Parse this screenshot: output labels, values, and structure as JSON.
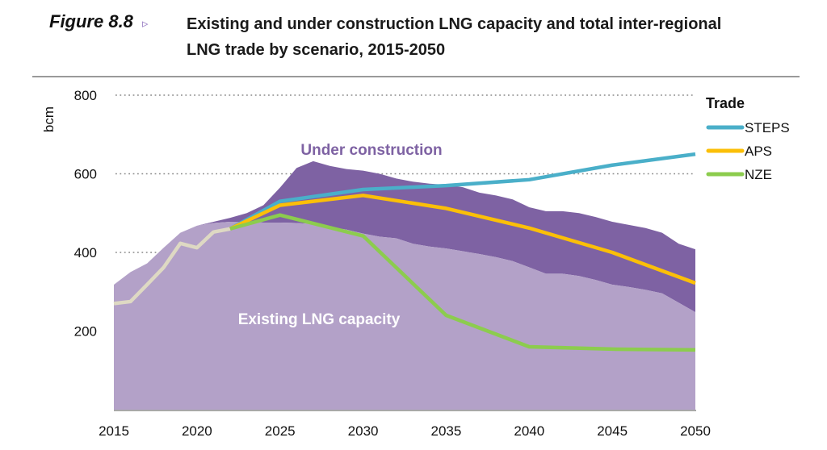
{
  "figure": {
    "label": "Figure 8.8",
    "arrow": "▹",
    "title": "Existing and under construction LNG capacity and total inter-regional LNG trade by scenario, 2015-2050"
  },
  "chart_data": {
    "type": "area",
    "title": "Existing and under construction LNG capacity and total inter-regional LNG trade by scenario, 2015-2050",
    "xlabel": "",
    "ylabel": "bcm",
    "xlim": [
      2015,
      2050
    ],
    "ylim": [
      0,
      800
    ],
    "x_ticks": [
      "2015",
      "2020",
      "2025",
      "2030",
      "2035",
      "2040",
      "2045",
      "2050"
    ],
    "y_ticks": [
      "200",
      "400",
      "600",
      "800"
    ],
    "grid": "horizontal dotted",
    "areas": [
      {
        "name": "Existing LNG capacity",
        "color": "#b3a1c8",
        "label_color": "#ffffff",
        "x": [
          2015,
          2016,
          2017,
          2018,
          2019,
          2020,
          2021,
          2022,
          2023,
          2024,
          2025,
          2026,
          2027,
          2028,
          2029,
          2030,
          2031,
          2032,
          2033,
          2034,
          2035,
          2036,
          2037,
          2038,
          2039,
          2040,
          2041,
          2042,
          2043,
          2044,
          2045,
          2046,
          2047,
          2048,
          2049,
          2050
        ],
        "values": [
          318,
          350,
          372,
          412,
          450,
          468,
          475,
          478,
          478,
          476,
          476,
          475,
          472,
          465,
          458,
          448,
          440,
          436,
          422,
          415,
          410,
          403,
          396,
          388,
          378,
          362,
          346,
          346,
          340,
          330,
          318,
          312,
          305,
          296,
          272,
          248
        ]
      },
      {
        "name": "Under construction",
        "color": "#7e62a3",
        "label_color": "#7e62a3",
        "x": [
          2015,
          2016,
          2017,
          2018,
          2019,
          2020,
          2021,
          2022,
          2023,
          2024,
          2025,
          2026,
          2027,
          2028,
          2029,
          2030,
          2031,
          2032,
          2033,
          2034,
          2035,
          2036,
          2037,
          2038,
          2039,
          2040,
          2041,
          2042,
          2043,
          2044,
          2045,
          2046,
          2047,
          2048,
          2049,
          2050
        ],
        "total_values": [
          318,
          350,
          372,
          412,
          450,
          468,
          478,
          488,
          500,
          520,
          565,
          615,
          632,
          620,
          612,
          608,
          600,
          588,
          580,
          575,
          572,
          566,
          552,
          545,
          535,
          515,
          505,
          505,
          500,
          490,
          478,
          470,
          462,
          450,
          422,
          408
        ]
      }
    ],
    "series": [
      {
        "name": "Historical trade",
        "color": "#ded9c3",
        "in_legend": false,
        "x": [
          2015,
          2016,
          2017,
          2018,
          2019,
          2020,
          2021,
          2022
        ],
        "values": [
          270,
          275,
          318,
          362,
          423,
          412,
          452,
          460
        ]
      },
      {
        "name": "STEPS",
        "color": "#4aafc9",
        "in_legend": true,
        "x": [
          2022,
          2025,
          2030,
          2035,
          2040,
          2045,
          2050
        ],
        "values": [
          460,
          530,
          560,
          570,
          585,
          622,
          650
        ]
      },
      {
        "name": "APS",
        "color": "#fbbf08",
        "in_legend": true,
        "x": [
          2022,
          2025,
          2030,
          2035,
          2040,
          2045,
          2050
        ],
        "values": [
          460,
          520,
          545,
          512,
          462,
          400,
          322
        ]
      },
      {
        "name": "NZE",
        "color": "#8ccc4e",
        "in_legend": true,
        "x": [
          2022,
          2025,
          2030,
          2035,
          2040,
          2045,
          2050
        ],
        "values": [
          460,
          495,
          442,
          240,
          160,
          154,
          152
        ]
      }
    ],
    "legend": {
      "title": "Trade",
      "placement": "top-right",
      "items": [
        "STEPS",
        "APS",
        "NZE"
      ]
    },
    "annotations": [
      "Under construction",
      "Existing LNG capacity"
    ]
  }
}
